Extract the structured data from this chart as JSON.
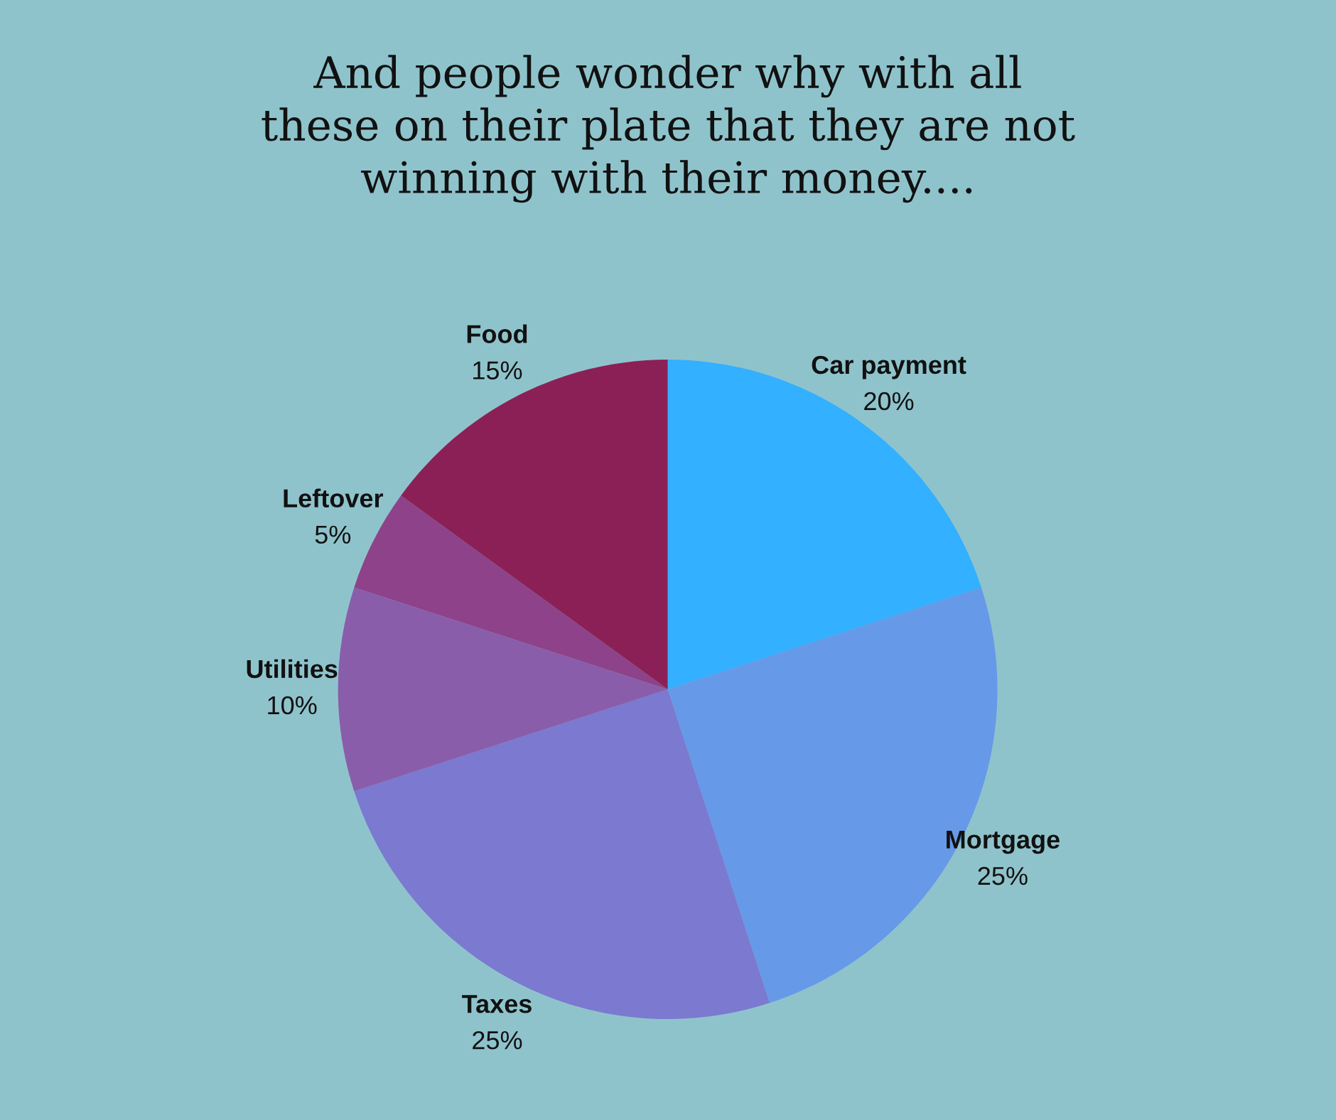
{
  "chart_data": {
    "type": "pie",
    "title": "And people wonder why with all\nthese on their plate that they are not\nwinning with their money....",
    "categories": [
      "Car payment",
      "Mortgage",
      "Taxes",
      "Utilities",
      "Leftover",
      "Food"
    ],
    "values": [
      20,
      25,
      25,
      10,
      5,
      15
    ],
    "value_labels": [
      "20%",
      "25%",
      "25%",
      "10%",
      "5%",
      "15%"
    ],
    "colors": [
      "#33b0ff",
      "#6699e8",
      "#7b79d0",
      "#8a5dab",
      "#8e4289",
      "#8b2057"
    ],
    "legend": false
  }
}
